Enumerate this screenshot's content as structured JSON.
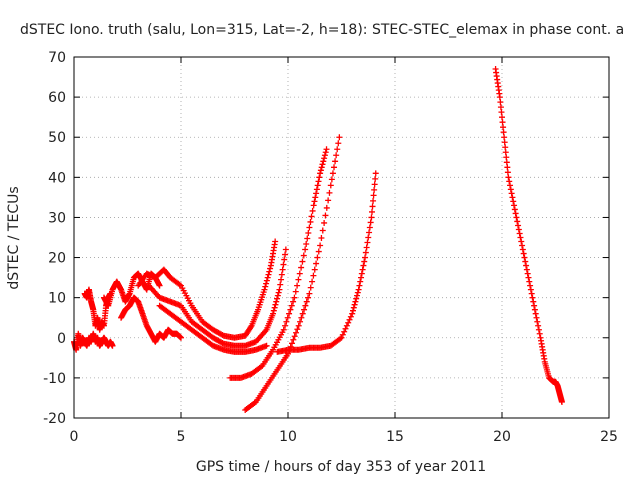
{
  "chart_data": {
    "type": "scatter",
    "title": "dSTEC Iono. truth (salu, Lon=315, Lat=-2, h=18): STEC-STEC_elemax in phase cont. a",
    "xlabel": "GPS time / hours of day 353 of year 2011",
    "ylabel": "dSTEC  / TECUs",
    "xlim": [
      0,
      25
    ],
    "ylim": [
      -20,
      70
    ],
    "xticks": [
      0,
      5,
      10,
      15,
      20,
      25
    ],
    "yticks": [
      -20,
      -10,
      0,
      10,
      20,
      30,
      40,
      50,
      60,
      70
    ],
    "grid": true,
    "marker": "+",
    "color": "#ff0000",
    "series": [
      {
        "x": [
          0.0,
          0.1,
          0.2,
          0.3,
          0.4,
          0.5,
          0.6,
          0.7,
          0.8,
          0.9,
          1.0,
          1.1,
          1.2,
          1.3,
          1.4,
          1.5,
          1.6,
          1.7,
          1.8
        ],
        "y": [
          -1,
          -3,
          1,
          -2,
          0,
          -1,
          -2,
          0,
          -1,
          1,
          -1,
          0,
          -2,
          -1,
          0,
          -1,
          -2,
          -1,
          -2
        ]
      },
      {
        "x": [
          0.5,
          0.6,
          0.7,
          0.8,
          0.9,
          1.0,
          1.1,
          1.2,
          1.3,
          1.4,
          1.5,
          1.6,
          1.7
        ],
        "y": [
          11,
          10,
          12,
          9,
          7,
          3,
          5,
          2,
          4,
          3,
          8,
          10,
          11
        ]
      },
      {
        "x": [
          1.4,
          1.6,
          1.8,
          2.0,
          2.2,
          2.4,
          2.6,
          2.8,
          3.0,
          3.2,
          3.4,
          3.6,
          3.8,
          4.0
        ],
        "y": [
          10,
          8,
          12,
          14,
          12,
          9,
          11,
          15,
          16,
          14,
          12,
          16,
          15,
          13
        ]
      },
      {
        "x": [
          2.2,
          2.4,
          2.6,
          2.8,
          3.0,
          3.2,
          3.4,
          3.6,
          3.8,
          4.0,
          4.2,
          4.4,
          4.6,
          4.8,
          5.0
        ],
        "y": [
          5,
          7,
          8,
          10,
          9,
          6,
          3,
          1,
          -1,
          1,
          0,
          2,
          1,
          1,
          0
        ]
      },
      {
        "x": [
          3.0,
          3.4,
          3.8,
          4.2,
          4.5,
          5.0,
          5.5,
          6.0,
          6.5,
          7.0,
          7.5,
          8.0,
          8.3,
          8.6,
          8.9,
          9.2,
          9.4
        ],
        "y": [
          13,
          16,
          15,
          17,
          15,
          13,
          8,
          4,
          2,
          0.5,
          0,
          0.5,
          3,
          7,
          12,
          18,
          24
        ]
      },
      {
        "x": [
          3.5,
          4.0,
          4.5,
          5.0,
          5.5,
          6.0,
          6.5,
          7.0,
          7.5,
          8.0,
          8.5,
          9.0,
          9.3,
          9.6,
          9.9
        ],
        "y": [
          13,
          10,
          9,
          8,
          4,
          2,
          0,
          -1.5,
          -2,
          -2,
          -1,
          2,
          6,
          12,
          22
        ]
      },
      {
        "x": [
          4.0,
          4.5,
          5.0,
          5.5,
          6.0,
          6.5,
          7.0,
          7.5,
          8.0,
          8.5,
          9.0
        ],
        "y": [
          8,
          6,
          4,
          2,
          0,
          -2,
          -3,
          -3.5,
          -3.5,
          -3,
          -2
        ]
      },
      {
        "x": [
          7.3,
          7.8,
          8.3,
          8.8,
          9.3,
          9.8,
          10.3,
          10.8,
          11.2,
          11.5,
          11.8
        ],
        "y": [
          -10,
          -10,
          -9,
          -7,
          -3,
          2,
          10,
          22,
          33,
          41,
          47
        ]
      },
      {
        "x": [
          8.0,
          8.5,
          9.0,
          9.5,
          10.0,
          10.5,
          11.0,
          11.5,
          12.0,
          12.4
        ],
        "y": [
          -18,
          -16,
          -12,
          -8,
          -4,
          3,
          11,
          23,
          38,
          50
        ]
      },
      {
        "x": [
          9.5,
          10.0,
          10.5,
          11.0,
          11.5,
          12.0,
          12.5,
          13.0,
          13.3,
          13.6,
          13.9,
          14.1
        ],
        "y": [
          -3.5,
          -3,
          -3,
          -2.5,
          -2.5,
          -2,
          0,
          6,
          12,
          20,
          30,
          41
        ]
      },
      {
        "x": [
          19.7,
          19.9,
          20.1,
          20.3,
          20.6,
          20.9,
          21.2,
          21.5,
          21.8,
          22.0,
          22.2,
          22.4,
          22.5,
          22.6,
          22.7,
          22.8
        ],
        "y": [
          67,
          60,
          50,
          40,
          32,
          24,
          16,
          8,
          0,
          -6,
          -10,
          -11,
          -11,
          -12,
          -14,
          -16
        ]
      }
    ]
  }
}
